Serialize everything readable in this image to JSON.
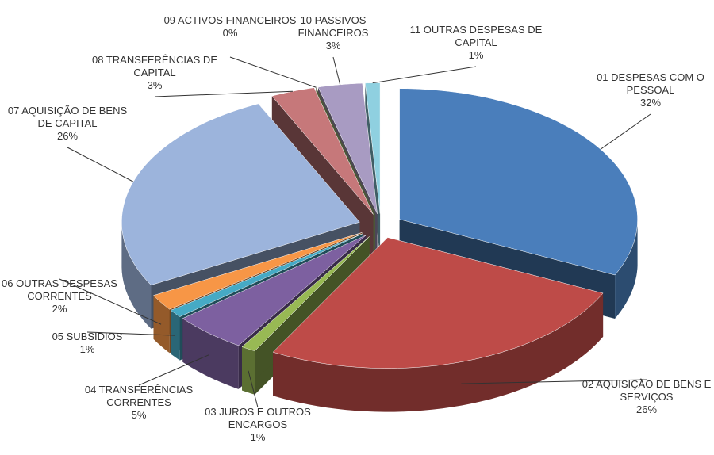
{
  "chart_data": {
    "type": "pie3d",
    "categories": [
      "01 DESPESAS COM O PESSOAL",
      "02 AQUISIÇÃO DE BENS E SERVIÇOS",
      "03 JUROS E OUTROS ENCARGOS",
      "04 TRANSFERÊNCIAS CORRENTES",
      "05 SUBSIDIOS",
      "06 OUTRAS DESPESAS CORRENTES",
      "07 AQUISIÇÃO DE BENS DE CAPITAL",
      "08 TRANSFERÊNCIAS DE CAPITAL",
      "09 ACTIVOS FINANCEIROS",
      "10 PASSIVOS FINANCEIROS",
      "11 OUTRAS DESPESAS DE CAPITAL"
    ],
    "values": [
      32,
      26,
      1,
      5,
      1,
      2,
      26,
      3,
      0,
      3,
      1
    ],
    "value_labels": [
      "32%",
      "26%",
      "1%",
      "5%",
      "1%",
      "2%",
      "26%",
      "3%",
      "0%",
      "3%",
      "1%"
    ],
    "colors": [
      "#4a7ebb",
      "#be4b48",
      "#98b954",
      "#7d60a0",
      "#46aac5",
      "#f79646",
      "#9cb4dc",
      "#c6787a",
      "#a8c07a",
      "#a89bc2",
      "#8fd0e0"
    ]
  }
}
